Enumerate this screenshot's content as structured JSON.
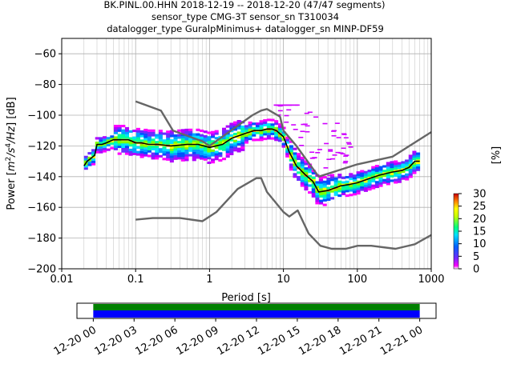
{
  "title_lines": [
    "BK.PINL.00.HHN   2018-12-19 -- 2018-12-20  (47/47 segments)",
    "sensor_type CMG-3T sensor_sn T310034",
    "datalogger_type GuralpMinimus+ datalogger_sn MINP-DF59"
  ],
  "colors": {
    "median": "#000000",
    "noise_models": "#666666",
    "coverage_green": "#008000",
    "coverage_blue": "#0000ff"
  },
  "colorbar": {
    "label": "[%]",
    "ticks": [
      "0",
      "5",
      "10",
      "15",
      "20",
      "25",
      "30"
    ],
    "tick_values": [
      0,
      5,
      10,
      15,
      20,
      25,
      30
    ],
    "range": [
      0,
      30
    ],
    "colormap": "pqlx"
  },
  "chart_data": {
    "type": "heatmap",
    "xlabel": "Period [s]",
    "ylabel": "Power [m²/s⁴/Hz] [dB]",
    "ylabel_parts": {
      "main": "Power [",
      "m": "m",
      "exp2": "2",
      "s": "/s",
      "exp4": "4",
      "hz": "/Hz",
      "tail": "] [dB]"
    },
    "x_scale": "log",
    "xlim": [
      0.01,
      1000
    ],
    "ylim": [
      -200,
      -50
    ],
    "x_tick_labels": [
      "0.01",
      "0.1",
      "1",
      "10",
      "100",
      "1000"
    ],
    "x_tick_values": [
      0.01,
      0.1,
      1,
      10,
      100,
      1000
    ],
    "y_tick_labels": [
      "−60",
      "−80",
      "−100",
      "−120",
      "−140",
      "−160",
      "−180",
      "−200"
    ],
    "y_tick_values": [
      -60,
      -80,
      -100,
      -120,
      -140,
      -160,
      -180,
      -200
    ],
    "grid": true,
    "median": {
      "period": [
        0.02,
        0.022,
        0.025,
        0.028,
        0.03,
        0.035,
        0.04,
        0.05,
        0.06,
        0.07,
        0.08,
        0.09,
        0.1,
        0.12,
        0.15,
        0.2,
        0.3,
        0.5,
        0.7,
        1.0,
        1.5,
        2.0,
        3.0,
        4.0,
        5.0,
        6.0,
        7.0,
        8.0,
        10.0,
        12.0,
        15.0,
        20.0,
        25.0,
        30.0,
        40.0,
        60.0,
        80.0,
        100.0,
        150.0,
        200.0,
        300.0,
        400.0,
        500.0,
        600.0,
        700.0
      ],
      "db": [
        -133,
        -130,
        -128,
        -126,
        -119,
        -119,
        -118,
        -116,
        -116,
        -116,
        -116,
        -117,
        -118,
        -118,
        -119,
        -119,
        -120,
        -119,
        -119,
        -121,
        -119,
        -115,
        -112,
        -110,
        -110,
        -109,
        -109,
        -110,
        -114,
        -124,
        -133,
        -139,
        -143,
        -150,
        -149,
        -146,
        -145,
        -144,
        -141,
        -139,
        -137,
        -136,
        -134,
        -130,
        -130
      ]
    },
    "nhnm": {
      "period": [
        0.1,
        0.22,
        0.32,
        0.8,
        1.0,
        3.8,
        5.0,
        6.0,
        9.0,
        10.0,
        15.0,
        30.0,
        100.0,
        300.0,
        1000.0
      ],
      "db": [
        -91,
        -97,
        -110,
        -117,
        -120,
        -100,
        -97,
        -96,
        -101,
        -110,
        -120,
        -140,
        -132,
        -127,
        -111
      ]
    },
    "nlnm": {
      "period": [
        0.1,
        0.17,
        0.4,
        0.8,
        1.24,
        2.4,
        4.3,
        5.0,
        6.0,
        10.0,
        12.0,
        15.6,
        21.9,
        31.6,
        45.0,
        70.0,
        101.0,
        154.0,
        328.0,
        600.0,
        1000.0
      ],
      "db": [
        -168,
        -167,
        -167,
        -169,
        -163,
        -148,
        -141,
        -141,
        -150,
        -163,
        -166,
        -162,
        -177,
        -185,
        -187,
        -187,
        -185,
        -185,
        -187,
        -184,
        -178
      ]
    },
    "coverage_axis": {
      "tick_labels": [
        "12-20 00",
        "12-20 03",
        "12-20 06",
        "12-20 09",
        "12-20 12",
        "12-20 15",
        "12-20 18",
        "12-20 21",
        "12-21 00"
      ],
      "tick_hours": [
        0,
        3,
        6,
        9,
        12,
        15,
        18,
        21,
        24
      ],
      "xlim_hours": [
        -1.2,
        25.2
      ],
      "data_span_hours": [
        0,
        24
      ]
    }
  }
}
